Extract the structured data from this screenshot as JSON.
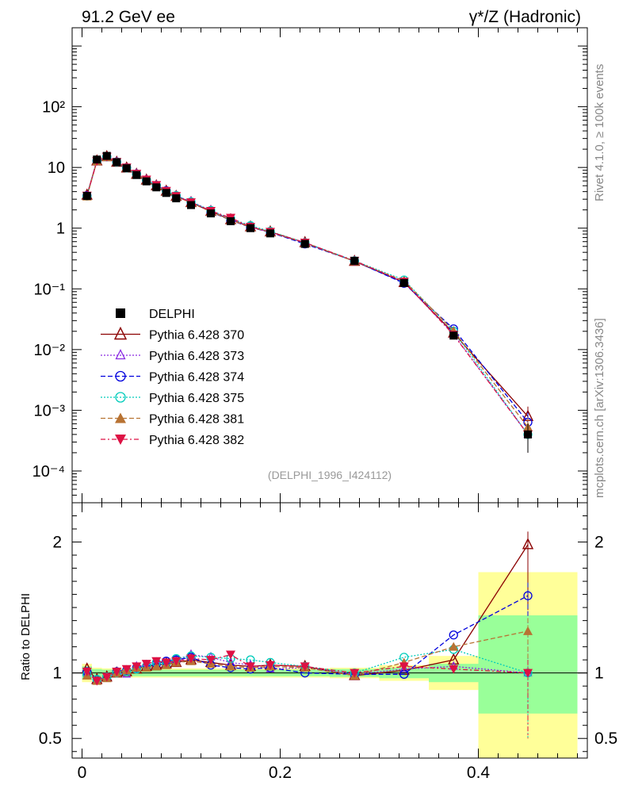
{
  "header": {
    "left_title": "91.2 GeV ee",
    "right_title": "γ*/Z (Hadronic)"
  },
  "side_labels": {
    "rivet": "Rivet 4.1.0, ≥ 100k events",
    "mcplots": "mcplots.cern.ch [arXiv:1306.3436]"
  },
  "watermark": "(DELPHI_1996_I424112)",
  "ratio_ylabel": "Ratio to DELPHI",
  "main_ticks": {
    "labels": [
      "10⁻⁴",
      "10⁻³",
      "10⁻²",
      "10⁻¹",
      "1",
      "10",
      "10²"
    ],
    "values": [
      0.0001,
      0.001,
      0.01,
      0.1,
      1,
      10,
      100
    ]
  },
  "ratio_ticks": {
    "labels": [
      "0.5",
      "1",
      "2"
    ],
    "values": [
      0.5,
      1,
      2
    ]
  },
  "x_ticks": {
    "labels": [
      "0",
      "0.2",
      "0.4"
    ],
    "values": [
      0,
      0.2,
      0.4
    ]
  },
  "chart_data": [
    {
      "type": "line",
      "panel": "main",
      "xlim": [
        -0.01,
        0.51
      ],
      "ylim": [
        3e-05,
        2000
      ],
      "ylog": true,
      "x": [
        0.005,
        0.015,
        0.025,
        0.035,
        0.045,
        0.055,
        0.065,
        0.075,
        0.085,
        0.095,
        0.11,
        0.13,
        0.15,
        0.17,
        0.19,
        0.225,
        0.275,
        0.325,
        0.375,
        0.45
      ],
      "bin_edges": [
        0,
        0.01,
        0.02,
        0.03,
        0.04,
        0.05,
        0.06,
        0.07,
        0.08,
        0.09,
        0.1,
        0.12,
        0.14,
        0.16,
        0.18,
        0.2,
        0.25,
        0.3,
        0.35,
        0.4,
        0.5
      ],
      "data": {
        "name": "DELPHI",
        "values": [
          3.4,
          13.5,
          15.5,
          12.2,
          9.7,
          7.5,
          5.9,
          4.7,
          3.8,
          3.1,
          2.4,
          1.75,
          1.3,
          1.0,
          0.82,
          0.55,
          0.29,
          0.125,
          0.017,
          0.0004
        ],
        "errors_lo": [
          0.2,
          0.5,
          0.5,
          0.4,
          0.3,
          0.25,
          0.2,
          0.15,
          0.12,
          0.1,
          0.08,
          0.06,
          0.05,
          0.04,
          0.03,
          0.02,
          0.012,
          0.007,
          0.0015,
          0.0002
        ],
        "errors_hi": [
          0.2,
          0.5,
          0.5,
          0.4,
          0.3,
          0.25,
          0.2,
          0.15,
          0.12,
          0.1,
          0.08,
          0.06,
          0.05,
          0.04,
          0.03,
          0.02,
          0.012,
          0.007,
          0.0015,
          0.0002
        ]
      },
      "series": [
        {
          "name": "Pythia 6.428 370",
          "color": "#8b0000",
          "dash": "",
          "marker": "triangle-open",
          "ratio": [
            1.03,
            0.95,
            0.97,
            1.0,
            1.01,
            1.03,
            1.05,
            1.06,
            1.07,
            1.08,
            1.1,
            1.08,
            1.06,
            1.05,
            1.06,
            1.05,
            0.98,
            1.02,
            1.1,
            1.98
          ]
        },
        {
          "name": "Pythia 6.428 373",
          "color": "#8a2be2",
          "dash": "2,2",
          "marker": "triangle-open-small",
          "ratio": [
            1.0,
            0.94,
            0.96,
            1.0,
            0.99,
            1.05,
            1.06,
            1.08,
            1.07,
            1.1,
            1.14,
            1.12,
            1.08,
            1.06,
            1.03,
            1.04,
            0.99,
            1.03,
            1.05,
            1.0
          ]
        },
        {
          "name": "Pythia 6.428 374",
          "color": "#0000dd",
          "dash": "6,3",
          "marker": "circle-open",
          "ratio": [
            1.01,
            0.95,
            0.97,
            1.01,
            1.02,
            1.04,
            1.05,
            1.07,
            1.09,
            1.1,
            1.12,
            1.06,
            1.04,
            1.03,
            1.04,
            1.0,
            0.99,
            0.99,
            1.29,
            1.59
          ]
        },
        {
          "name": "Pythia 6.428 375",
          "color": "#00ccbb",
          "dash": "2,2",
          "marker": "circle-open",
          "ratio": [
            0.99,
            0.95,
            0.97,
            1.0,
            1.01,
            1.03,
            1.05,
            1.08,
            1.07,
            1.11,
            1.13,
            1.12,
            1.11,
            1.1,
            1.08,
            1.05,
            1.0,
            1.12,
            1.18,
            1.0
          ]
        },
        {
          "name": "Pythia 6.428 381",
          "color": "#b87333",
          "dash": "6,3",
          "marker": "triangle-filled",
          "ratio": [
            0.98,
            0.94,
            0.96,
            1.0,
            1.02,
            1.04,
            1.04,
            1.05,
            1.06,
            1.08,
            1.09,
            1.07,
            1.05,
            1.04,
            1.05,
            1.04,
            0.98,
            1.08,
            1.2,
            1.32
          ]
        },
        {
          "name": "Pythia 6.428 382",
          "color": "#dd1144",
          "dash": "6,3,2,3",
          "marker": "triangle-down-filled",
          "ratio": [
            1.01,
            0.94,
            0.97,
            1.01,
            1.03,
            1.05,
            1.07,
            1.09,
            1.08,
            1.09,
            1.11,
            1.1,
            1.14,
            1.05,
            1.06,
            1.05,
            1.0,
            1.05,
            1.03,
            1.0
          ]
        }
      ],
      "legend_position": "middle-left"
    },
    {
      "type": "line",
      "panel": "ratio",
      "ylabel": "Ratio to DELPHI",
      "ylim": [
        0.35,
        2.3
      ],
      "reference": 1,
      "uncertainty_bands": {
        "bin_edges": [
          0,
          0.01,
          0.02,
          0.03,
          0.04,
          0.05,
          0.06,
          0.07,
          0.08,
          0.09,
          0.1,
          0.12,
          0.14,
          0.16,
          0.18,
          0.2,
          0.25,
          0.3,
          0.35,
          0.4,
          0.5
        ],
        "green_lo": [
          0.95,
          0.97,
          0.975,
          0.975,
          0.975,
          0.975,
          0.975,
          0.975,
          0.975,
          0.975,
          0.975,
          0.975,
          0.975,
          0.975,
          0.975,
          0.975,
          0.97,
          0.96,
          0.93,
          0.69
        ],
        "green_hi": [
          1.05,
          1.03,
          1.025,
          1.025,
          1.025,
          1.025,
          1.025,
          1.025,
          1.025,
          1.025,
          1.025,
          1.025,
          1.025,
          1.025,
          1.025,
          1.025,
          1.03,
          1.04,
          1.07,
          1.44
        ],
        "yellow_lo": [
          0.93,
          0.96,
          0.965,
          0.965,
          0.965,
          0.965,
          0.965,
          0.965,
          0.965,
          0.965,
          0.965,
          0.965,
          0.965,
          0.965,
          0.965,
          0.965,
          0.96,
          0.94,
          0.87,
          0.35
        ],
        "yellow_hi": [
          1.07,
          1.04,
          1.035,
          1.035,
          1.035,
          1.035,
          1.035,
          1.035,
          1.035,
          1.035,
          1.035,
          1.035,
          1.035,
          1.035,
          1.035,
          1.035,
          1.04,
          1.06,
          1.13,
          1.77
        ]
      }
    }
  ]
}
